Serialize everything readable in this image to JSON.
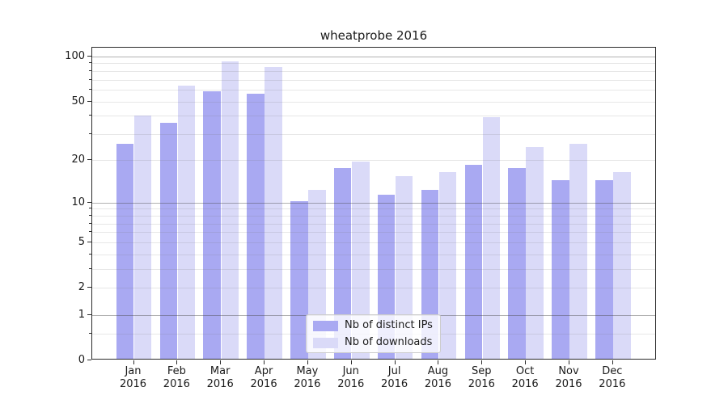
{
  "title": "wheatprobe 2016",
  "chart_data": {
    "type": "bar",
    "title": "wheatprobe 2016",
    "categories": [
      "Jan",
      "Feb",
      "Mar",
      "Apr",
      "May",
      "Jun",
      "Jul",
      "Aug",
      "Sep",
      "Oct",
      "Nov",
      "Dec"
    ],
    "category_year": "2016",
    "series": [
      {
        "name": "Nb of distinct IPs",
        "color": "#a9a9f2",
        "values": [
          25,
          35,
          57,
          55,
          10,
          17,
          11,
          12,
          18,
          17,
          14,
          14
        ]
      },
      {
        "name": "Nb of downloads",
        "color": "#dadaf8",
        "values": [
          39,
          62,
          90,
          83,
          12,
          19,
          15,
          16,
          38,
          24,
          25,
          16
        ]
      }
    ],
    "y_axis": {
      "scale": "symlog",
      "transform": "y position proportional to ln(1+value)",
      "tick_labels": [
        "100",
        "50",
        "20",
        "10",
        "5",
        "2",
        "1",
        "0"
      ],
      "tick_values": [
        100,
        50,
        20,
        10,
        5,
        2,
        1,
        0
      ],
      "minor_tick_values": [
        0.5,
        3,
        4,
        6,
        7,
        8,
        9,
        30,
        40,
        60,
        70,
        80,
        90
      ],
      "major_grid_values": [
        1,
        10,
        100
      ],
      "minor_grid_values": [
        0.5,
        2,
        3,
        4,
        5,
        6,
        7,
        8,
        9,
        20,
        30,
        40,
        50,
        60,
        70,
        80,
        90
      ],
      "ylim": [
        0,
        114
      ]
    },
    "xlabel": "",
    "ylabel": "",
    "grid": "on",
    "legend": {
      "position": "lower center",
      "entries": [
        "Nb of distinct IPs",
        "Nb of downloads"
      ]
    }
  }
}
